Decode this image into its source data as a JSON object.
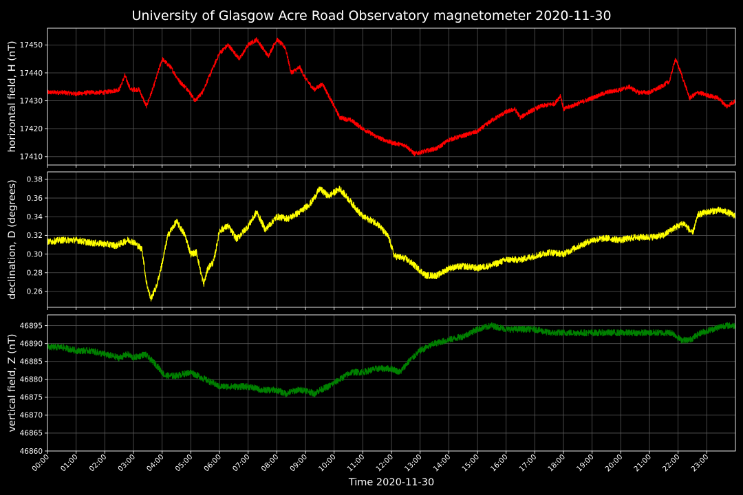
{
  "chart_data": {
    "type": "line",
    "title": "University of Glasgow Acre Road Observatory magnetometer 2020-11-30",
    "xlabel": "Time 2020-11-30",
    "x_ticks": [
      "00:00",
      "01:00",
      "02:00",
      "03:00",
      "04:00",
      "05:00",
      "06:00",
      "07:00",
      "08:00",
      "09:00",
      "10:00",
      "11:00",
      "12:00",
      "13:00",
      "14:00",
      "15:00",
      "16:00",
      "17:00",
      "18:00",
      "19:00",
      "20:00",
      "21:00",
      "22:00",
      "23:00"
    ],
    "x_unit": "hours",
    "xlim": [
      0,
      24
    ],
    "grid": true,
    "panels": [
      {
        "name": "horizontal",
        "ylabel": "horizontal field, H (nT)",
        "color": "#ff0000",
        "ylim": [
          17407,
          17456
        ],
        "yticks": [
          17410,
          17420,
          17430,
          17440,
          17450
        ],
        "noise": 0.8,
        "points": [
          [
            0,
            17433
          ],
          [
            0.5,
            17433
          ],
          [
            1,
            17432.5
          ],
          [
            1.5,
            17433
          ],
          [
            2,
            17433
          ],
          [
            2.5,
            17434
          ],
          [
            2.7,
            17439
          ],
          [
            2.9,
            17434
          ],
          [
            3.2,
            17434
          ],
          [
            3.45,
            17428
          ],
          [
            3.7,
            17435
          ],
          [
            4,
            17445
          ],
          [
            4.3,
            17442
          ],
          [
            4.6,
            17437
          ],
          [
            4.9,
            17434
          ],
          [
            5.15,
            17430
          ],
          [
            5.4,
            17433
          ],
          [
            5.7,
            17440
          ],
          [
            6,
            17447
          ],
          [
            6.3,
            17450
          ],
          [
            6.7,
            17445
          ],
          [
            7,
            17450
          ],
          [
            7.3,
            17452
          ],
          [
            7.7,
            17446
          ],
          [
            8,
            17452
          ],
          [
            8.3,
            17449
          ],
          [
            8.5,
            17440
          ],
          [
            8.8,
            17442
          ],
          [
            9,
            17438
          ],
          [
            9.3,
            17434
          ],
          [
            9.6,
            17436
          ],
          [
            9.9,
            17430
          ],
          [
            10.2,
            17424
          ],
          [
            10.6,
            17423
          ],
          [
            11,
            17420
          ],
          [
            11.5,
            17417
          ],
          [
            12,
            17415
          ],
          [
            12.5,
            17414
          ],
          [
            12.8,
            17411
          ],
          [
            13.2,
            17412
          ],
          [
            13.6,
            17413
          ],
          [
            14,
            17416
          ],
          [
            14.5,
            17417.5
          ],
          [
            15,
            17419
          ],
          [
            15.5,
            17423
          ],
          [
            16,
            17426
          ],
          [
            16.3,
            17427
          ],
          [
            16.5,
            17424
          ],
          [
            16.8,
            17426
          ],
          [
            17.2,
            17428
          ],
          [
            17.7,
            17429
          ],
          [
            17.9,
            17432
          ],
          [
            18,
            17427
          ],
          [
            18.5,
            17429
          ],
          [
            19,
            17431
          ],
          [
            19.5,
            17433
          ],
          [
            20,
            17434
          ],
          [
            20.3,
            17435
          ],
          [
            20.6,
            17433
          ],
          [
            21,
            17433
          ],
          [
            21.4,
            17435
          ],
          [
            21.7,
            17437
          ],
          [
            21.9,
            17445
          ],
          [
            22.1,
            17440
          ],
          [
            22.4,
            17431
          ],
          [
            22.7,
            17433
          ],
          [
            23,
            17432
          ],
          [
            23.4,
            17431
          ],
          [
            23.7,
            17428
          ],
          [
            24,
            17430
          ]
        ]
      },
      {
        "name": "declination",
        "ylabel": "declination, D (degrees)",
        "color": "#ffff00",
        "ylim": [
          0.243,
          0.388
        ],
        "yticks": [
          0.26,
          0.28,
          0.3,
          0.32,
          0.34,
          0.36,
          0.38
        ],
        "yticks_text": [
          "0.26",
          "0.28",
          "0.30",
          "0.32",
          "0.34",
          "0.36",
          "0.38"
        ],
        "noise": 0.0035,
        "points": [
          [
            0,
            0.313
          ],
          [
            0.5,
            0.315
          ],
          [
            1,
            0.315
          ],
          [
            1.5,
            0.312
          ],
          [
            2,
            0.311
          ],
          [
            2.4,
            0.309
          ],
          [
            2.6,
            0.312
          ],
          [
            2.8,
            0.315
          ],
          [
            3,
            0.313
          ],
          [
            3.3,
            0.305
          ],
          [
            3.45,
            0.27
          ],
          [
            3.6,
            0.252
          ],
          [
            3.8,
            0.265
          ],
          [
            4,
            0.29
          ],
          [
            4.2,
            0.32
          ],
          [
            4.5,
            0.335
          ],
          [
            4.8,
            0.32
          ],
          [
            5,
            0.3
          ],
          [
            5.2,
            0.302
          ],
          [
            5.35,
            0.28
          ],
          [
            5.45,
            0.268
          ],
          [
            5.6,
            0.285
          ],
          [
            5.8,
            0.292
          ],
          [
            6,
            0.325
          ],
          [
            6.3,
            0.33
          ],
          [
            6.6,
            0.316
          ],
          [
            7,
            0.33
          ],
          [
            7.3,
            0.345
          ],
          [
            7.6,
            0.326
          ],
          [
            8,
            0.34
          ],
          [
            8.4,
            0.338
          ],
          [
            8.8,
            0.345
          ],
          [
            9.2,
            0.355
          ],
          [
            9.5,
            0.37
          ],
          [
            9.8,
            0.362
          ],
          [
            10.2,
            0.37
          ],
          [
            10.6,
            0.355
          ],
          [
            11,
            0.34
          ],
          [
            11.5,
            0.333
          ],
          [
            11.9,
            0.318
          ],
          [
            12.1,
            0.298
          ],
          [
            12.5,
            0.295
          ],
          [
            12.8,
            0.288
          ],
          [
            13.2,
            0.277
          ],
          [
            13.6,
            0.277
          ],
          [
            14,
            0.285
          ],
          [
            14.5,
            0.287
          ],
          [
            15,
            0.285
          ],
          [
            15.5,
            0.288
          ],
          [
            16,
            0.294
          ],
          [
            16.5,
            0.294
          ],
          [
            17,
            0.298
          ],
          [
            17.5,
            0.302
          ],
          [
            18,
            0.3
          ],
          [
            18.5,
            0.308
          ],
          [
            19,
            0.315
          ],
          [
            19.5,
            0.317
          ],
          [
            20,
            0.315
          ],
          [
            20.5,
            0.318
          ],
          [
            21,
            0.318
          ],
          [
            21.5,
            0.32
          ],
          [
            21.8,
            0.327
          ],
          [
            22.2,
            0.333
          ],
          [
            22.5,
            0.322
          ],
          [
            22.7,
            0.342
          ],
          [
            23,
            0.345
          ],
          [
            23.4,
            0.347
          ],
          [
            23.7,
            0.345
          ],
          [
            24,
            0.341
          ]
        ]
      },
      {
        "name": "vertical",
        "ylabel": "vertical field, Z (nT)",
        "color": "#008000",
        "ylim": [
          46860,
          46898
        ],
        "yticks": [
          46860,
          46865,
          46870,
          46875,
          46880,
          46885,
          46890,
          46895
        ],
        "noise": 0.9,
        "points": [
          [
            0,
            46889
          ],
          [
            0.5,
            46889
          ],
          [
            1,
            46888
          ],
          [
            1.5,
            46888
          ],
          [
            2,
            46887
          ],
          [
            2.5,
            46886
          ],
          [
            2.8,
            46887
          ],
          [
            3,
            46886
          ],
          [
            3.4,
            46887
          ],
          [
            3.8,
            46884
          ],
          [
            4.1,
            46881
          ],
          [
            4.5,
            46881
          ],
          [
            5,
            46882
          ],
          [
            5.5,
            46880
          ],
          [
            6,
            46878
          ],
          [
            6.5,
            46878
          ],
          [
            7,
            46878
          ],
          [
            7.5,
            46877
          ],
          [
            8,
            46877
          ],
          [
            8.3,
            46876
          ],
          [
            8.7,
            46877
          ],
          [
            9,
            46877
          ],
          [
            9.3,
            46876
          ],
          [
            9.5,
            46877
          ],
          [
            9.8,
            46878
          ],
          [
            10.2,
            46880
          ],
          [
            10.6,
            46882
          ],
          [
            11,
            46882
          ],
          [
            11.5,
            46883
          ],
          [
            12,
            46883
          ],
          [
            12.3,
            46882
          ],
          [
            12.6,
            46885
          ],
          [
            13,
            46888
          ],
          [
            13.5,
            46890
          ],
          [
            14,
            46891
          ],
          [
            14.5,
            46892
          ],
          [
            15,
            46894
          ],
          [
            15.5,
            46895
          ],
          [
            16,
            46894
          ],
          [
            16.5,
            46894
          ],
          [
            17,
            46894
          ],
          [
            17.5,
            46893
          ],
          [
            18,
            46893
          ],
          [
            18.5,
            46893
          ],
          [
            19,
            46893
          ],
          [
            19.5,
            46893
          ],
          [
            20,
            46893
          ],
          [
            20.5,
            46893
          ],
          [
            21,
            46893
          ],
          [
            21.5,
            46893
          ],
          [
            21.8,
            46893
          ],
          [
            22.1,
            46891
          ],
          [
            22.4,
            46891
          ],
          [
            22.8,
            46893
          ],
          [
            23.2,
            46894
          ],
          [
            23.6,
            46895
          ],
          [
            24,
            46895
          ]
        ]
      }
    ]
  }
}
